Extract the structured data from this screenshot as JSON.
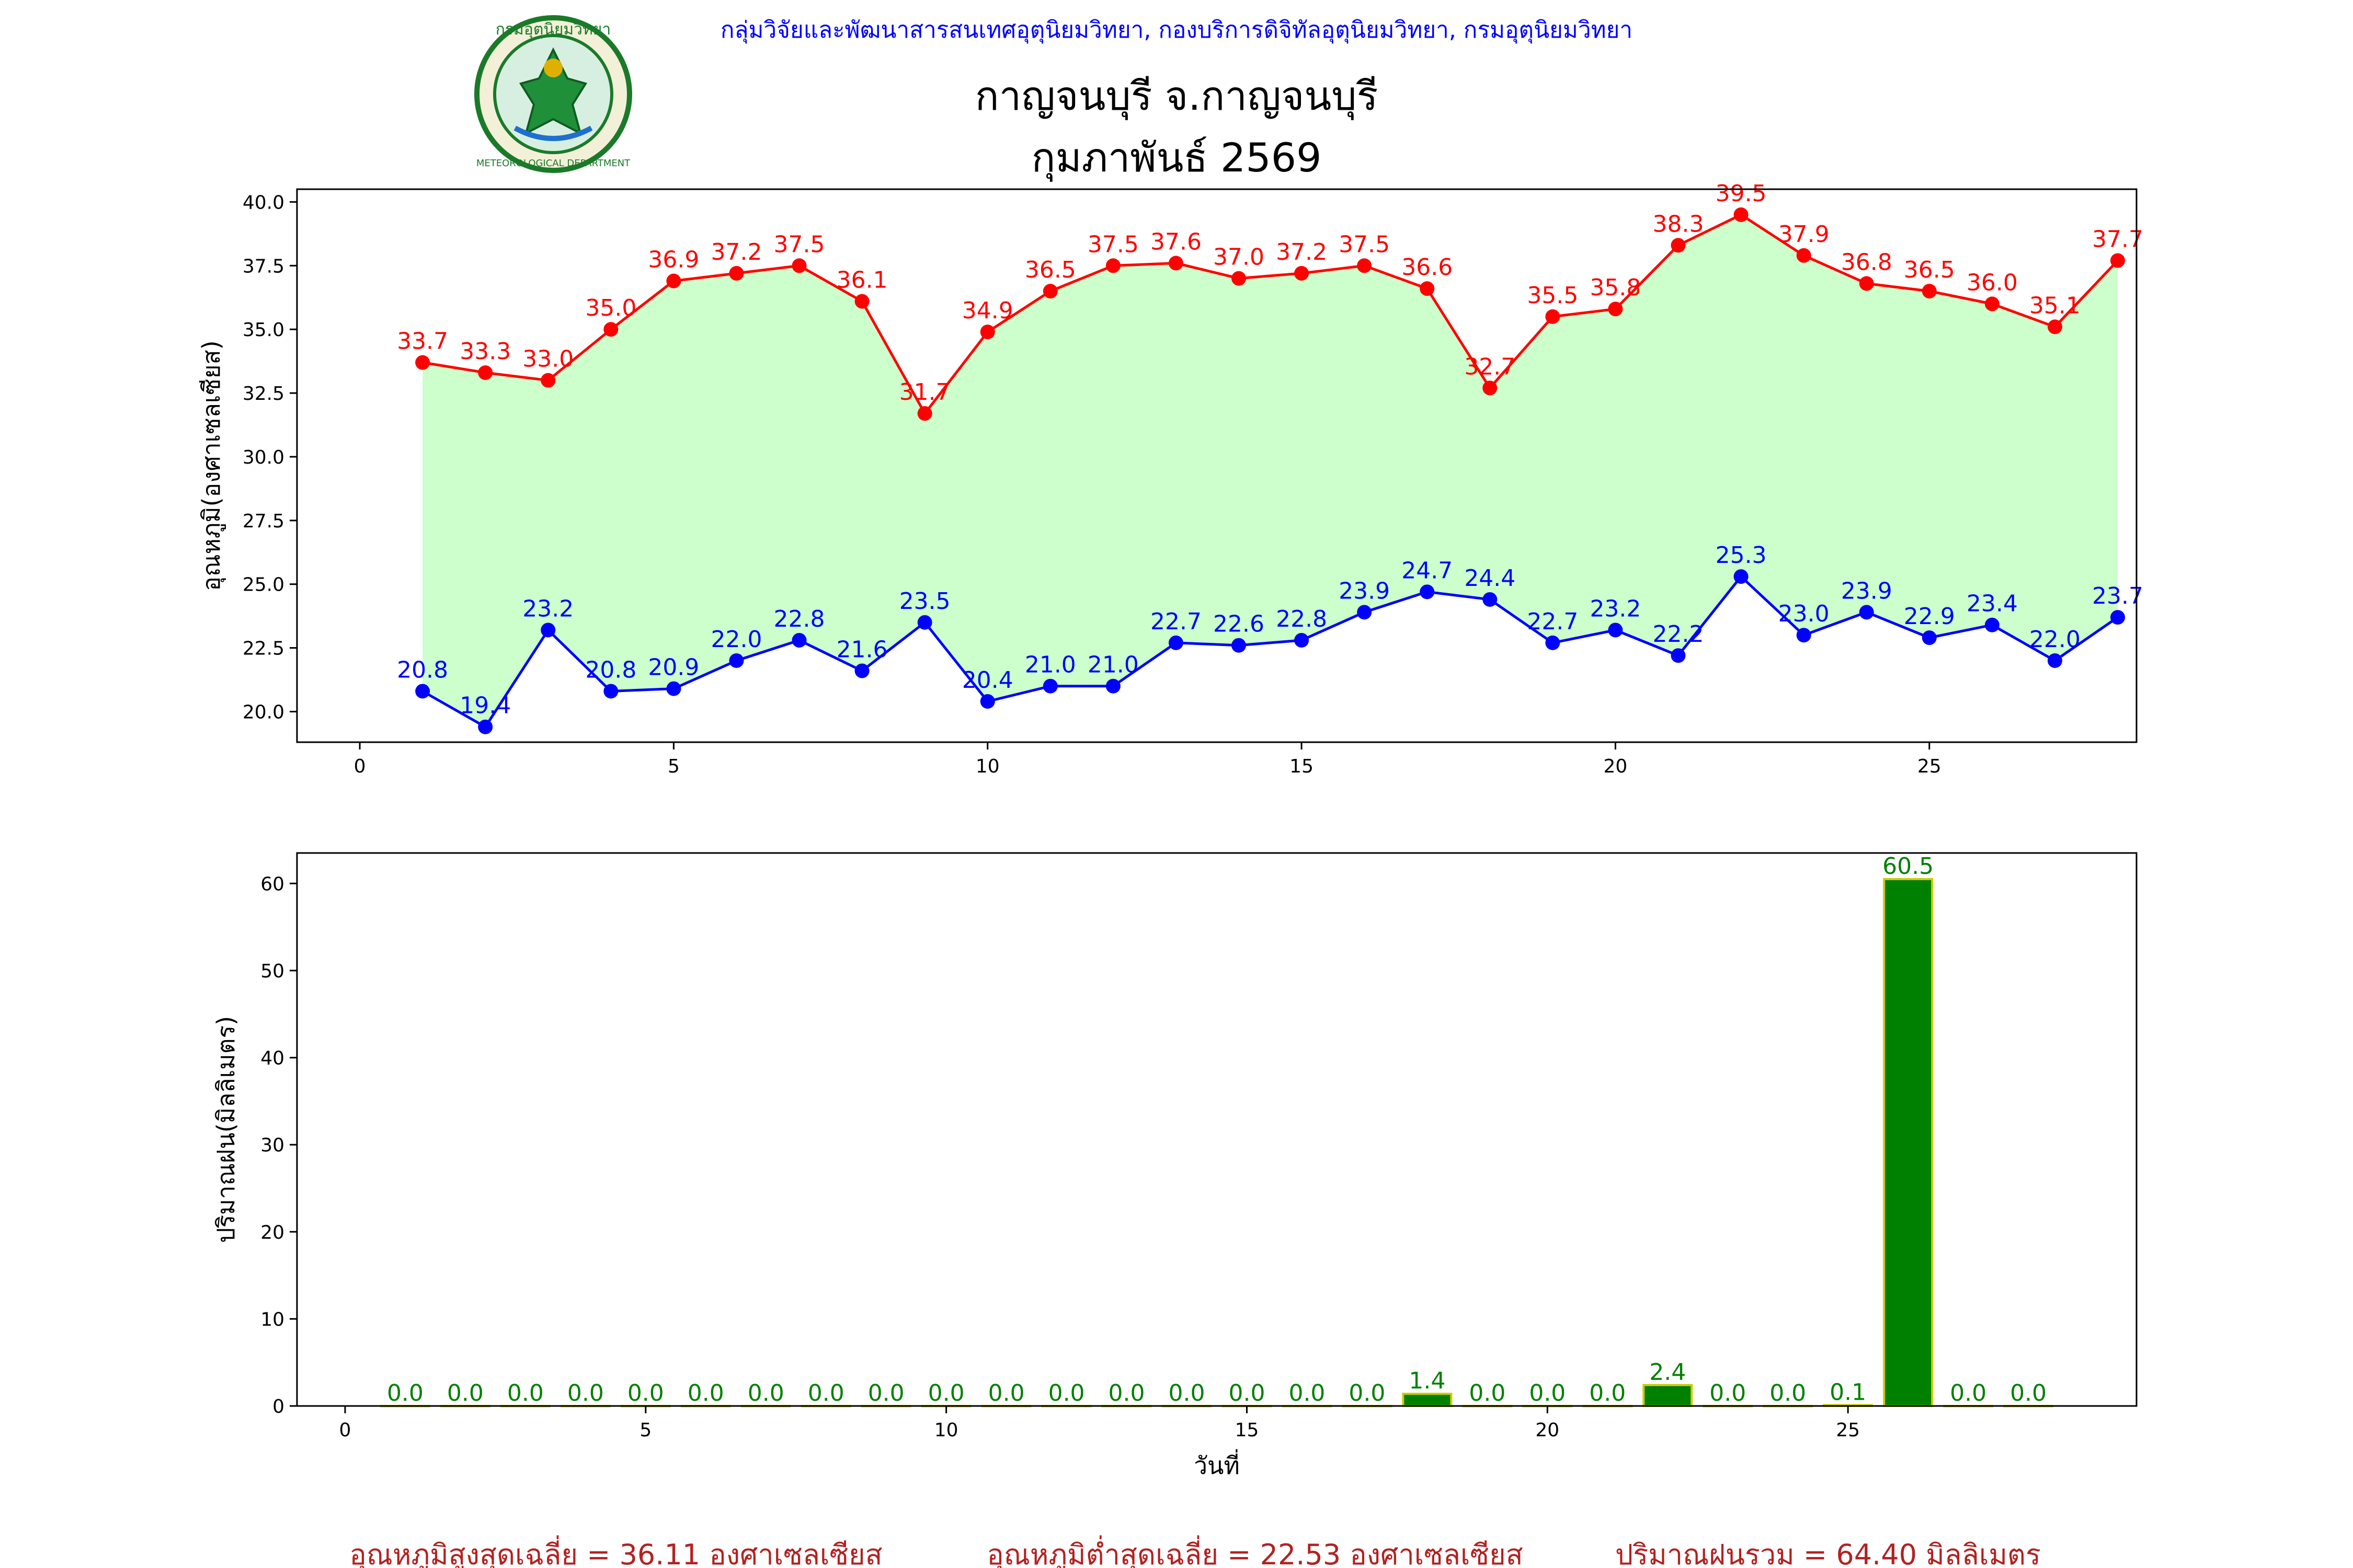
{
  "header": {
    "department_line": "กลุ่มวิจัยและพัฒนาสารสนเทศอุตุนิยมวิทยา, กองบริการดิจิทัลอุตุนิยมวิทยา, กรมอุตุนิยมวิทยา",
    "station": "กาญจนบุรี จ.กาญจนบุรี",
    "period": "กุมภาพันธ์ 2569",
    "logo_text": "กรมอุตุนิยมวิทยา",
    "logo_ring_text": "METEOROLOGICAL DEPARTMENT"
  },
  "colors": {
    "max_line": "#ff0000",
    "min_line": "#0000ff",
    "fill": "#ccffcc",
    "bar_fill": "#008000",
    "bar_edge": "#cccc00",
    "bar_label": "#008000",
    "footer": "#b22222",
    "header_line": "#0000ff"
  },
  "chart_data": [
    {
      "type": "line",
      "ylabel": "อุณหภูมิ(องศาเซลเซียส)",
      "xlabel": "",
      "xlim": [
        -1,
        28.3
      ],
      "ylim": [
        18.8,
        40.5
      ],
      "xticks": [
        "0",
        "5",
        "10",
        "15",
        "20",
        "25"
      ],
      "yticks": [
        "20.0",
        "22.5",
        "25.0",
        "27.5",
        "30.0",
        "32.5",
        "35.0",
        "37.5",
        "40.0"
      ],
      "grid": false,
      "x": [
        1,
        2,
        3,
        4,
        5,
        6,
        7,
        8,
        9,
        10,
        11,
        12,
        13,
        14,
        15,
        16,
        17,
        18,
        19,
        20,
        21,
        22,
        23,
        24,
        25,
        26,
        27,
        28
      ],
      "series": [
        {
          "values": [
            33.7,
            33.3,
            33.0,
            35.0,
            36.9,
            37.2,
            37.5,
            36.1,
            31.7,
            34.9,
            36.5,
            37.5,
            37.6,
            37.0,
            37.2,
            37.5,
            36.6,
            32.7,
            35.5,
            35.8,
            38.3,
            39.5,
            37.9,
            36.8,
            36.5,
            36.0,
            35.1,
            37.7
          ],
          "labels": [
            "33.7",
            "33.3",
            "33.0",
            "35.0",
            "36.9",
            "37.2",
            "37.5",
            "36.1",
            "31.7",
            "34.9",
            "36.5",
            "37.5",
            "37.6",
            "37.0",
            "37.2",
            "37.5",
            "36.6",
            "32.7",
            "35.5",
            "35.8",
            "38.3",
            "39.5",
            "37.9",
            "36.8",
            "36.5",
            "36.0",
            "35.1",
            "37.7"
          ]
        },
        {
          "values": [
            20.8,
            19.4,
            23.2,
            20.8,
            20.9,
            22.0,
            22.8,
            21.6,
            23.5,
            20.4,
            21.0,
            21.0,
            22.7,
            22.6,
            22.8,
            23.9,
            24.7,
            24.4,
            22.7,
            23.2,
            22.2,
            25.3,
            23.0,
            23.9,
            22.9,
            23.4,
            22.0,
            23.7
          ],
          "labels": [
            "20.8",
            "19.4",
            "23.2",
            "20.8",
            "20.9",
            "22.0",
            "22.8",
            "21.6",
            "23.5",
            "20.4",
            "21.0",
            "21.0",
            "22.7",
            "22.6",
            "22.8",
            "23.9",
            "24.7",
            "24.4",
            "22.7",
            "23.2",
            "22.2",
            "25.3",
            "23.0",
            "23.9",
            "22.9",
            "23.4",
            "22.0",
            "23.7"
          ]
        }
      ]
    },
    {
      "type": "bar",
      "ylabel": "ปริมาณฝน(มิลลิเมตร)",
      "xlabel": "วันที่",
      "xlim": [
        -0.8,
        29.8
      ],
      "ylim": [
        0,
        63.5
      ],
      "xticks": [
        "0",
        "5",
        "10",
        "15",
        "20",
        "25"
      ],
      "yticks": [
        "0",
        "10",
        "20",
        "30",
        "40",
        "50",
        "60"
      ],
      "grid": false,
      "x": [
        1,
        2,
        3,
        4,
        5,
        6,
        7,
        8,
        9,
        10,
        11,
        12,
        13,
        14,
        15,
        16,
        17,
        18,
        19,
        20,
        21,
        22,
        23,
        24,
        25,
        26,
        27,
        28
      ],
      "values": [
        0.0,
        0.0,
        0.0,
        0.0,
        0.0,
        0.0,
        0.0,
        0.0,
        0.0,
        0.0,
        0.0,
        0.0,
        0.0,
        0.0,
        0.0,
        0.0,
        0.0,
        1.4,
        0.0,
        0.0,
        0.0,
        2.4,
        0.0,
        0.0,
        0.1,
        60.5,
        0.0,
        0.0
      ],
      "labels": [
        "0.0",
        "0.0",
        "0.0",
        "0.0",
        "0.0",
        "0.0",
        "0.0",
        "0.0",
        "0.0",
        "0.0",
        "0.0",
        "0.0",
        "0.0",
        "0.0",
        "0.0",
        "0.0",
        "0.0",
        "1.4",
        "0.0",
        "0.0",
        "0.0",
        "2.4",
        "0.0",
        "0.0",
        "0.1",
        "60.5",
        "0.0",
        "0.0"
      ]
    }
  ],
  "footer": {
    "avg_max": "อุณหภูมิสูงสุดเฉลี่ย = 36.11 องศาเซลเซียส",
    "avg_min": "อุณหภูมิต่ำสุดเฉลี่ย = 22.53 องศาเซลเซียส",
    "total_rain": "ปริมาณฝนรวม = 64.40 มิลลิเมตร"
  }
}
